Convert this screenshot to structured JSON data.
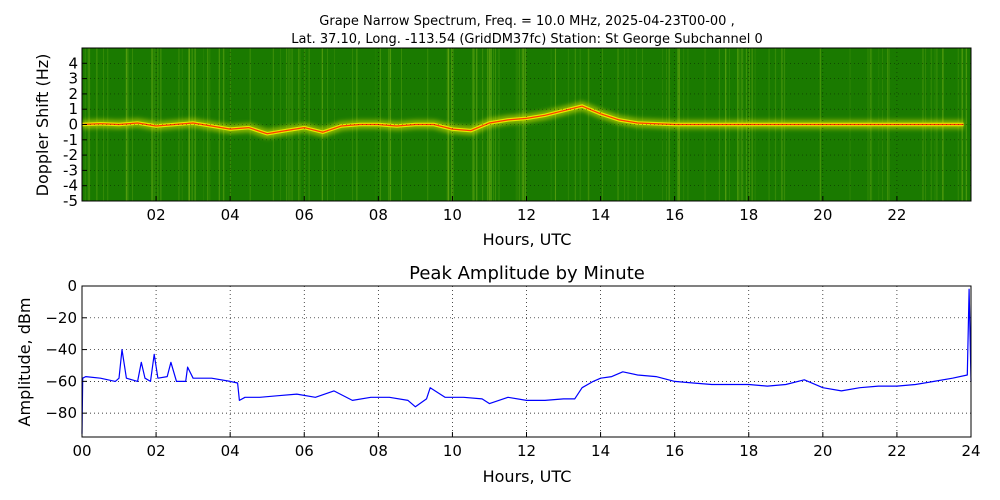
{
  "figure": {
    "title_line1": "Grape Narrow Spectrum, Freq. = 10.0 MHz, 2025-04-23T00-00 ,",
    "title_line2": "Lat.  37.10, Long. -113.54 (GridDM37fc) Station: St George Subchannel 0"
  },
  "chart_data": [
    {
      "type": "heatmap",
      "title": "",
      "xlabel": "Hours, UTC",
      "ylabel": "Doppler Shift (Hz)",
      "xlim": [
        0,
        24
      ],
      "ylim": [
        -5,
        5
      ],
      "x_ticks": [
        {
          "value": 2,
          "label": "02"
        },
        {
          "value": 4,
          "label": "04"
        },
        {
          "value": 6,
          "label": "06"
        },
        {
          "value": 8,
          "label": "08"
        },
        {
          "value": 10,
          "label": "10"
        },
        {
          "value": 12,
          "label": "12"
        },
        {
          "value": 14,
          "label": "14"
        },
        {
          "value": 16,
          "label": "16"
        },
        {
          "value": 18,
          "label": "18"
        },
        {
          "value": 20,
          "label": "20"
        },
        {
          "value": 22,
          "label": "22"
        }
      ],
      "y_ticks": [
        {
          "value": 4,
          "label": "4"
        },
        {
          "value": 3,
          "label": "3"
        },
        {
          "value": 2,
          "label": "2"
        },
        {
          "value": 1,
          "label": "1"
        },
        {
          "value": 0,
          "label": "0"
        },
        {
          "value": -1,
          "label": "-1"
        },
        {
          "value": -2,
          "label": "-2"
        },
        {
          "value": -3,
          "label": "-3"
        },
        {
          "value": -4,
          "label": "-4"
        },
        {
          "value": -5,
          "label": "-5"
        }
      ],
      "grid": true,
      "colors": {
        "background": "#1a7a00",
        "mid": "#e8e800",
        "peak": "#ff3b00"
      },
      "doppler_trace": [
        [
          0.0,
          0.0
        ],
        [
          0.5,
          0.05
        ],
        [
          1.0,
          0.0
        ],
        [
          1.5,
          0.1
        ],
        [
          2.0,
          -0.1
        ],
        [
          2.5,
          0.0
        ],
        [
          3.0,
          0.1
        ],
        [
          3.5,
          -0.1
        ],
        [
          4.0,
          -0.3
        ],
        [
          4.5,
          -0.2
        ],
        [
          5.0,
          -0.6
        ],
        [
          5.5,
          -0.4
        ],
        [
          6.0,
          -0.2
        ],
        [
          6.5,
          -0.5
        ],
        [
          7.0,
          -0.1
        ],
        [
          7.5,
          0.0
        ],
        [
          8.0,
          0.0
        ],
        [
          8.5,
          -0.1
        ],
        [
          9.0,
          0.0
        ],
        [
          9.5,
          0.0
        ],
        [
          10.0,
          -0.3
        ],
        [
          10.5,
          -0.4
        ],
        [
          11.0,
          0.1
        ],
        [
          11.5,
          0.3
        ],
        [
          12.0,
          0.4
        ],
        [
          12.5,
          0.6
        ],
        [
          13.0,
          0.9
        ],
        [
          13.5,
          1.2
        ],
        [
          14.0,
          0.7
        ],
        [
          14.5,
          0.3
        ],
        [
          15.0,
          0.1
        ],
        [
          16.0,
          0.0
        ],
        [
          17.0,
          0.0
        ],
        [
          18.0,
          0.0
        ],
        [
          19.0,
          0.0
        ],
        [
          20.0,
          0.0
        ],
        [
          21.0,
          0.0
        ],
        [
          22.0,
          0.0
        ],
        [
          23.0,
          0.0
        ],
        [
          23.8,
          0.0
        ]
      ]
    },
    {
      "type": "line",
      "title": "Peak Amplitude by Minute",
      "xlabel": "Hours, UTC",
      "ylabel": "Amplitude, dBm",
      "xlim": [
        0,
        24
      ],
      "ylim": [
        -95,
        0
      ],
      "x_ticks": [
        {
          "value": 0,
          "label": "00"
        },
        {
          "value": 2,
          "label": "02"
        },
        {
          "value": 4,
          "label": "04"
        },
        {
          "value": 6,
          "label": "06"
        },
        {
          "value": 8,
          "label": "08"
        },
        {
          "value": 10,
          "label": "10"
        },
        {
          "value": 12,
          "label": "12"
        },
        {
          "value": 14,
          "label": "14"
        },
        {
          "value": 16,
          "label": "16"
        },
        {
          "value": 18,
          "label": "18"
        },
        {
          "value": 20,
          "label": "20"
        },
        {
          "value": 22,
          "label": "22"
        },
        {
          "value": 24,
          "label": "24"
        }
      ],
      "y_ticks": [
        {
          "value": 0,
          "label": "0"
        },
        {
          "value": -20,
          "label": "−20"
        },
        {
          "value": -40,
          "label": "−40"
        },
        {
          "value": -60,
          "label": "−60"
        },
        {
          "value": -80,
          "label": "−80"
        }
      ],
      "grid": true,
      "series": [
        {
          "color": "#0000ff",
          "x": [
            0.0,
            0.02,
            0.1,
            0.5,
            0.9,
            1.0,
            1.08,
            1.2,
            1.5,
            1.6,
            1.7,
            1.85,
            1.95,
            2.05,
            2.3,
            2.4,
            2.55,
            2.8,
            2.85,
            3.0,
            3.5,
            4.0,
            4.2,
            4.25,
            4.4,
            4.8,
            5.3,
            5.8,
            6.3,
            6.8,
            7.3,
            7.8,
            8.3,
            8.8,
            9.0,
            9.3,
            9.4,
            9.8,
            10.3,
            10.8,
            11.0,
            11.5,
            12.0,
            12.5,
            13.0,
            13.3,
            13.5,
            13.8,
            14.0,
            14.3,
            14.6,
            15.0,
            15.5,
            16.0,
            16.5,
            17.0,
            17.5,
            18.0,
            18.5,
            19.0,
            19.5,
            20.0,
            20.5,
            21.0,
            21.5,
            22.0,
            22.5,
            23.0,
            23.5,
            23.9,
            23.95,
            24.0
          ],
          "y": [
            -93,
            -58,
            -57,
            -58,
            -60,
            -58,
            -40,
            -58,
            -60,
            -48,
            -58,
            -60,
            -43,
            -58,
            -57,
            -48,
            -60,
            -60,
            -51,
            -58,
            -58,
            -60,
            -61,
            -72,
            -70,
            -70,
            -69,
            -68,
            -70,
            -66,
            -72,
            -70,
            -70,
            -72,
            -76,
            -71,
            -64,
            -70,
            -70,
            -71,
            -74,
            -70,
            -72,
            -72,
            -71,
            -71,
            -64,
            -60,
            -58,
            -57,
            -54,
            -56,
            -57,
            -60,
            -61,
            -62,
            -62,
            -62,
            -63,
            -62,
            -59,
            -64,
            -66,
            -64,
            -63,
            -63,
            -62,
            -60,
            -58,
            -56,
            -2,
            -60
          ]
        }
      ]
    }
  ]
}
